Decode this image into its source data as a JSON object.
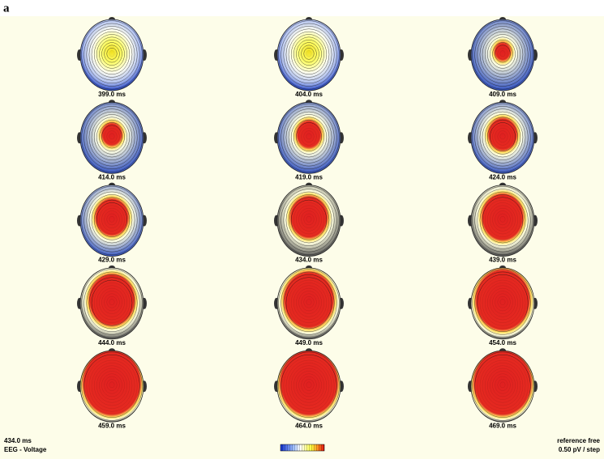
{
  "panel_label": "a",
  "maps": [
    "399.0 ms",
    "404.0 ms",
    "409.0 ms",
    "414.0 ms",
    "419.0 ms",
    "424.0 ms",
    "429.0 ms",
    "434.0 ms",
    "439.0 ms",
    "444.0 ms",
    "449.0 ms",
    "454.0 ms",
    "459.0 ms",
    "464.0 ms",
    "469.0 ms"
  ],
  "footer": {
    "time": "434.0 ms",
    "modality": "EEG - Voltage",
    "reference": "reference free",
    "scale": "0.50 pV / step"
  }
}
